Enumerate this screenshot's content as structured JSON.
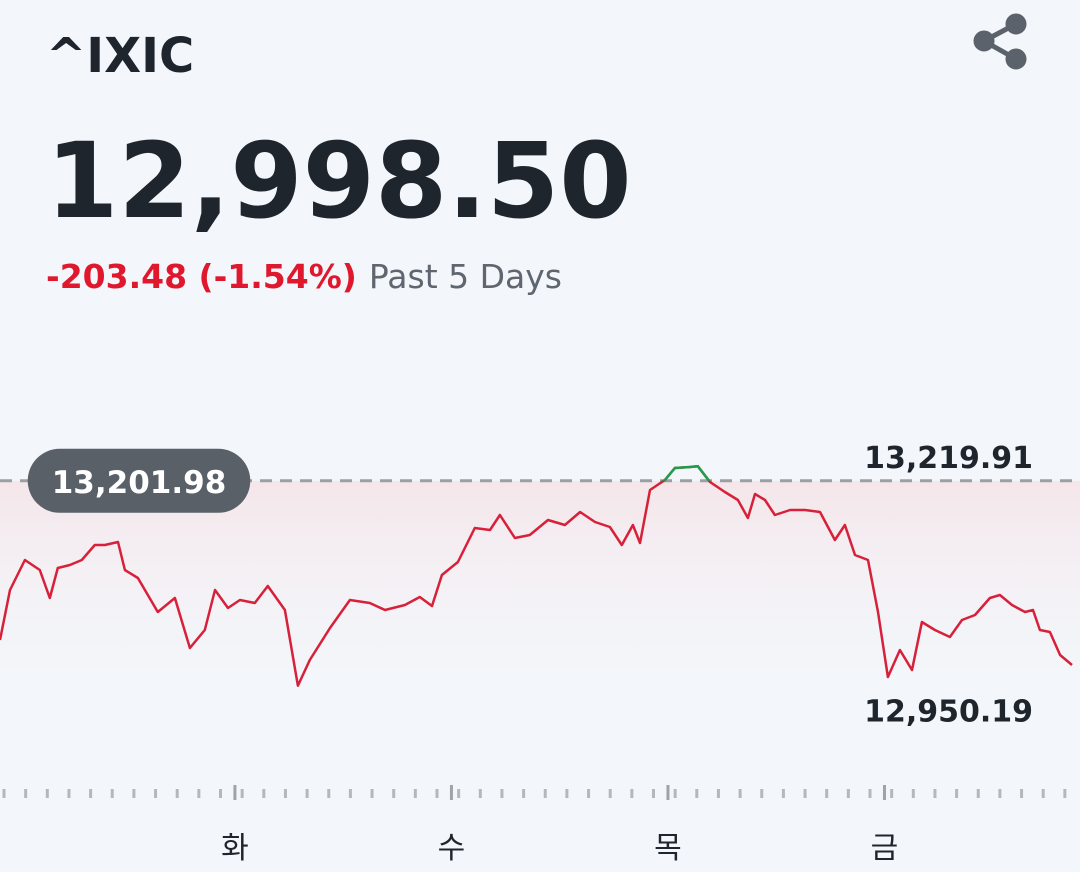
{
  "symbol": "^IXIC",
  "price": "12,998.50",
  "change": "-203.48 (-1.54%)",
  "period": "Past 5 Days",
  "chart_data": {
    "type": "line",
    "x": [
      -0.085,
      -0.039,
      0.03,
      0.099,
      0.145,
      0.182,
      0.238,
      0.293,
      0.353,
      0.399,
      0.46,
      0.492,
      0.552,
      0.644,
      0.723,
      0.792,
      0.861,
      0.908,
      0.968,
      1.023,
      1.092,
      1.152,
      1.231,
      1.291,
      1.346,
      1.439,
      1.531,
      1.623,
      1.693,
      1.785,
      1.854,
      1.91,
      1.956,
      2.03,
      2.108,
      2.178,
      2.224,
      2.293,
      2.362,
      2.446,
      2.524,
      2.594,
      2.663,
      2.732,
      2.787,
      2.838,
      2.871,
      2.917,
      2.986,
      3.032,
      3.102,
      3.138,
      3.194,
      3.263,
      3.323,
      3.369,
      3.402,
      3.448,
      3.494,
      3.564,
      3.633,
      3.702,
      3.771,
      3.817,
      3.864,
      3.924,
      3.97,
      4.016,
      4.071,
      4.127,
      4.173,
      4.233,
      4.302,
      4.358,
      4.418,
      4.487,
      4.533,
      4.589,
      4.649,
      4.686,
      4.718,
      4.764,
      4.811,
      4.866
    ],
    "series": [
      {
        "color": "#d7213a",
        "up_color": "#1e9e4a",
        "values": [
          13006.4,
          13067.8,
          13104.7,
          13092.4,
          13058.0,
          13094.8,
          13098.5,
          13104.7,
          13123.1,
          13123.1,
          13126.8,
          13092.4,
          13082.5,
          13040.8,
          13058.0,
          12996.5,
          13018.6,
          13067.8,
          13045.7,
          13055.5,
          13051.8,
          13072.7,
          13043.2,
          12950.19,
          12981.8,
          13021.1,
          13055.5,
          13051.8,
          13043.2,
          13049.4,
          13059.2,
          13048.1,
          13086.2,
          13102.2,
          13144.0,
          13141.5,
          13160.0,
          13131.7,
          13135.4,
          13153.8,
          13147.7,
          13163.6,
          13151.4,
          13145.2,
          13123.1,
          13147.7,
          13125.6,
          13190.7,
          13203.0,
          13217.7,
          13218.9,
          13219.91,
          13200.5,
          13188.2,
          13178.4,
          13156.3,
          13185.8,
          13178.4,
          13160.0,
          13166.1,
          13166.1,
          13163.6,
          13129.2,
          13147.7,
          13110.8,
          13104.7,
          13040.8,
          12960.9,
          12994.1,
          12969.5,
          13028.5,
          13018.6,
          13010.0,
          13030.9,
          13037.1,
          13058.0,
          13061.7,
          13049.4,
          13040.8,
          13043.2,
          13018.6,
          13016.2,
          12987.9,
          12975.6
        ]
      }
    ],
    "reference_line": {
      "value": 13201.98,
      "label": "13,201.98"
    },
    "high": {
      "value": 13219.91,
      "label": "13,219.91"
    },
    "low": {
      "value": 12950.19,
      "label": "12,950.19"
    },
    "xlim": [
      -0.085,
      4.903
    ],
    "ylim": [
      12940,
      13230
    ],
    "xticks": [
      {
        "value": 1,
        "label": "화"
      },
      {
        "value": 2,
        "label": "수"
      },
      {
        "value": 3,
        "label": "목"
      },
      {
        "value": 4,
        "label": "금"
      }
    ]
  }
}
